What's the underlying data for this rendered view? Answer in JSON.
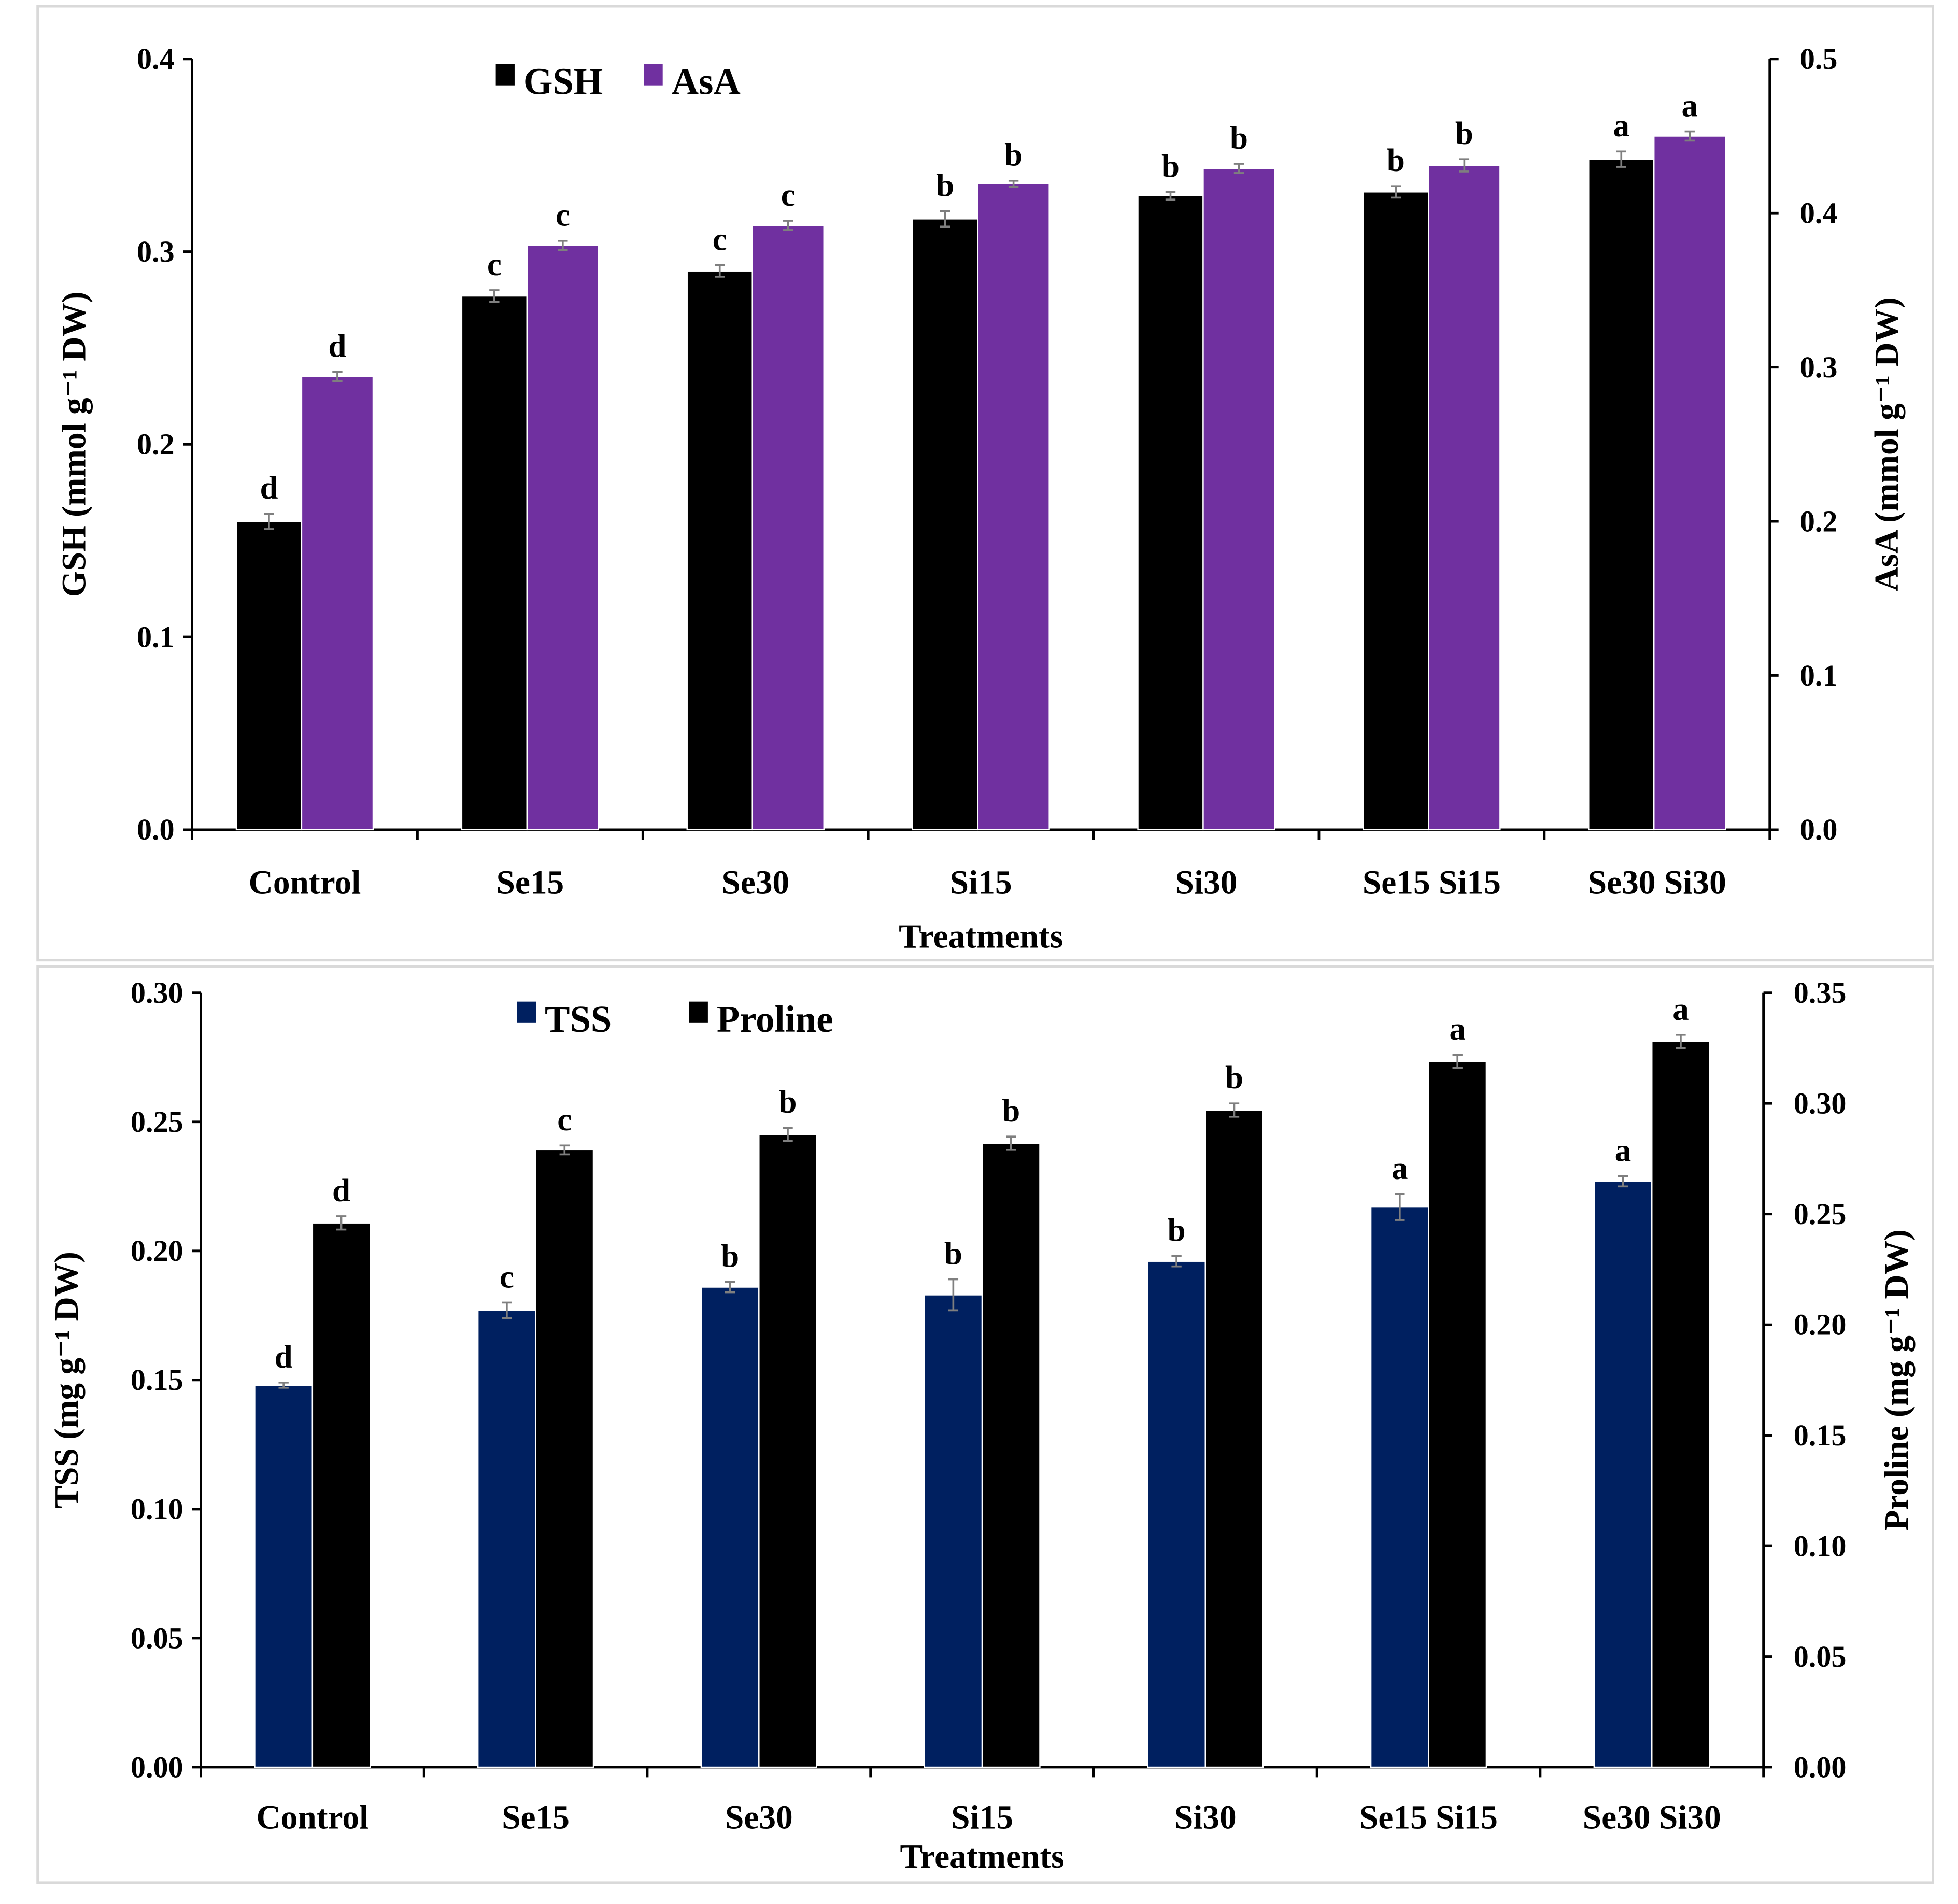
{
  "chart_data": [
    {
      "type": "bar",
      "title": "",
      "xlabel": "Treatments",
      "ylabel": "GSH (mmol g⁻¹ DW)",
      "y2label": "AsA (mmol g⁻¹ DW)",
      "ylim": [
        0,
        0.4
      ],
      "ystep": 0.1,
      "ydecimals": 1,
      "y2lim": [
        0,
        0.5
      ],
      "y2step": 0.1,
      "y2decimals": 1,
      "legend_position": "top-left",
      "categories": [
        "Control",
        "Se15",
        "Se30",
        "Si15",
        "Si30",
        "Se15 Si15",
        "Se30 Si30"
      ],
      "series": [
        {
          "name": "GSH",
          "axis": "left",
          "color": "#000000",
          "values": [
            0.16,
            0.277,
            0.29,
            0.317,
            0.329,
            0.331,
            0.348
          ],
          "errors": [
            0.004,
            0.003,
            0.003,
            0.004,
            0.002,
            0.003,
            0.004
          ],
          "letters": [
            "d",
            "c",
            "c",
            "b",
            "b",
            "b",
            "a"
          ]
        },
        {
          "name": "AsA",
          "axis": "right",
          "color": "#7030A0",
          "values": [
            0.294,
            0.379,
            0.392,
            0.419,
            0.429,
            0.431,
            0.45
          ],
          "errors": [
            0.003,
            0.003,
            0.003,
            0.002,
            0.003,
            0.004,
            0.003
          ],
          "letters": [
            "d",
            "c",
            "c",
            "b",
            "b",
            "b",
            "a"
          ]
        }
      ]
    },
    {
      "type": "bar",
      "title": "",
      "xlabel": "Treatments",
      "ylabel": "TSS (mg g⁻¹ DW)",
      "y2label": "Proline (mg g⁻¹ DW)",
      "ylim": [
        0,
        0.3
      ],
      "ystep": 0.05,
      "ydecimals": 2,
      "y2lim": [
        0,
        0.35
      ],
      "y2step": 0.05,
      "y2decimals": 2,
      "legend_position": "top-left",
      "categories": [
        "Control",
        "Se15",
        "Se30",
        "Si15",
        "Si30",
        "Se15 Si15",
        "Se30 Si30"
      ],
      "series": [
        {
          "name": "TSS",
          "axis": "left",
          "color": "#002060",
          "values": [
            0.148,
            0.177,
            0.186,
            0.183,
            0.196,
            0.217,
            0.227
          ],
          "errors": [
            0.001,
            0.003,
            0.002,
            0.006,
            0.002,
            0.005,
            0.002
          ],
          "letters": [
            "d",
            "c",
            "b",
            "b",
            "b",
            "a",
            "a"
          ]
        },
        {
          "name": "Proline",
          "axis": "right",
          "color": "#000000",
          "values": [
            0.246,
            0.279,
            0.286,
            0.282,
            0.297,
            0.319,
            0.328
          ],
          "errors": [
            0.003,
            0.002,
            0.003,
            0.003,
            0.003,
            0.003,
            0.003
          ],
          "letters": [
            "d",
            "c",
            "b",
            "b",
            "b",
            "a",
            "a"
          ]
        }
      ]
    }
  ]
}
